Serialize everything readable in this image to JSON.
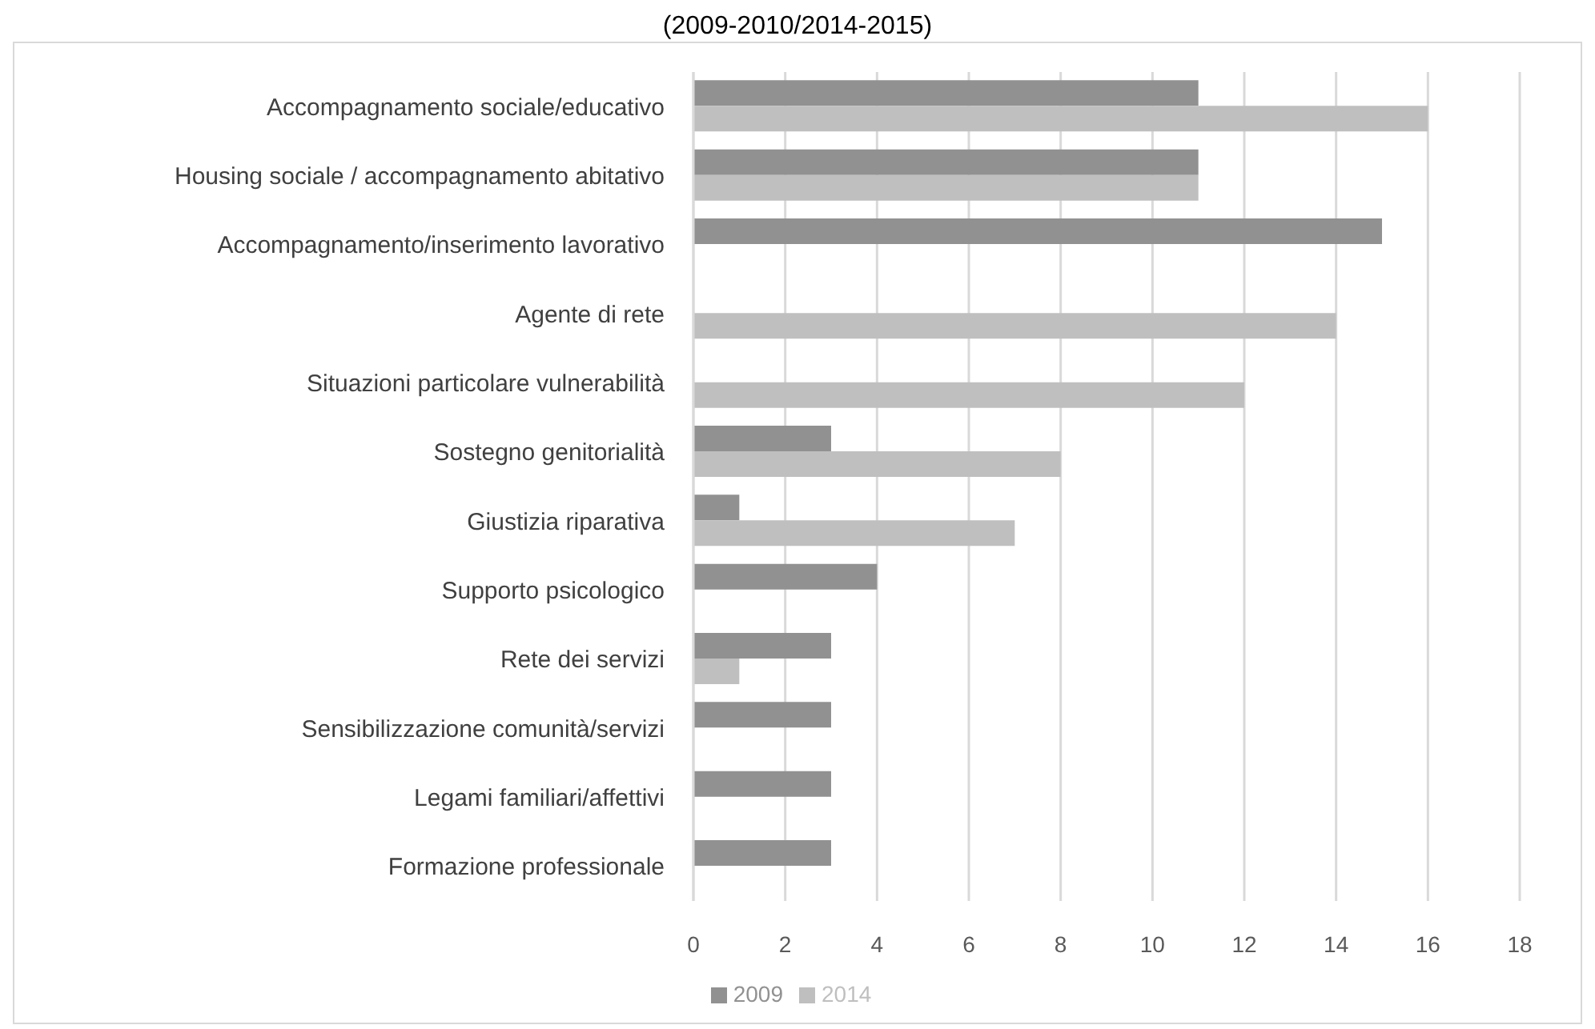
{
  "chart_data": {
    "type": "bar",
    "orientation": "horizontal",
    "title": "(2009-2010/2014-2015)",
    "categories": [
      "Accompagnamento sociale/educativo",
      "Housing sociale / accompagnamento abitativo",
      "Accompagnamento/inserimento lavorativo",
      "Agente di rete",
      "Situazioni particolare vulnerabilità",
      "Sostegno genitorialità",
      "Giustizia riparativa",
      "Supporto psicologico",
      "Rete dei servizi",
      "Sensibilizzazione comunità/servizi",
      "Legami familiari/affettivi",
      "Formazione professionale"
    ],
    "series": [
      {
        "name": "2009",
        "color": "#919191",
        "values": [
          11,
          11,
          15,
          null,
          null,
          3,
          1,
          4,
          3,
          3,
          3,
          3
        ]
      },
      {
        "name": "2014",
        "color": "#bfbfbf",
        "values": [
          16,
          11,
          null,
          14,
          12,
          8,
          7,
          null,
          1,
          null,
          null,
          null
        ]
      }
    ],
    "xlim": [
      0,
      18
    ],
    "xticks": [
      0,
      2,
      4,
      6,
      8,
      10,
      12,
      14,
      16,
      18
    ],
    "grid": "x",
    "legend": "bottom"
  }
}
